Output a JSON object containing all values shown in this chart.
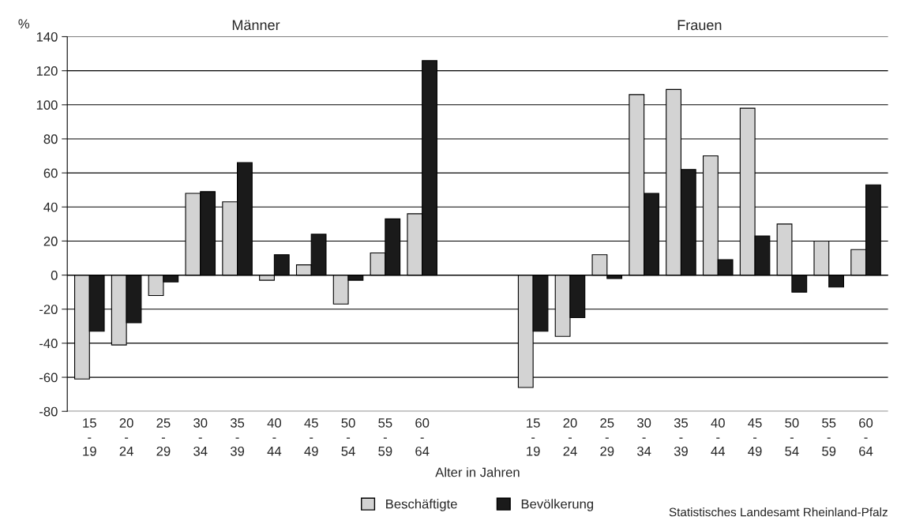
{
  "chart_data": {
    "type": "bar",
    "categories": [
      "15\n-\n19",
      "20\n-\n24",
      "25\n-\n29",
      "30\n-\n34",
      "35\n-\n39",
      "40\n-\n44",
      "45\n-\n49",
      "50\n-\n54",
      "55\n-\n59",
      "60\n-\n64",
      null,
      null,
      "15\n-\n19",
      "20\n-\n24",
      "25\n-\n29",
      "30\n-\n34",
      "35\n-\n39",
      "40\n-\n44",
      "45\n-\n49",
      "50\n-\n54",
      "55\n-\n59",
      "60\n-\n64"
    ],
    "series": [
      {
        "name": "Beschäftigte",
        "color": "#d3d3d3",
        "values": [
          -61,
          -41,
          -12,
          48,
          43,
          -3,
          6,
          -17,
          13,
          36,
          null,
          null,
          -66,
          -36,
          12,
          106,
          109,
          70,
          98,
          30,
          20,
          15
        ]
      },
      {
        "name": "Bevölkerung",
        "color": "#1a1a1a",
        "values": [
          -33,
          -28,
          -4,
          49,
          66,
          12,
          24,
          -3,
          33,
          126,
          null,
          null,
          -33,
          -25,
          -2,
          48,
          62,
          9,
          23,
          -10,
          -7,
          53
        ]
      }
    ],
    "ylabel": "%",
    "xlabel": "Alter in Jahren",
    "ylim": [
      -80,
      140
    ],
    "yticks": [
      -80,
      -60,
      -40,
      -20,
      0,
      20,
      40,
      60,
      80,
      100,
      120,
      140
    ],
    "grid": "y",
    "legend": "bottom",
    "annotations": [
      "Männer",
      "Frauen",
      "Statistisches Landesamt Rheinland-Pfalz"
    ]
  }
}
